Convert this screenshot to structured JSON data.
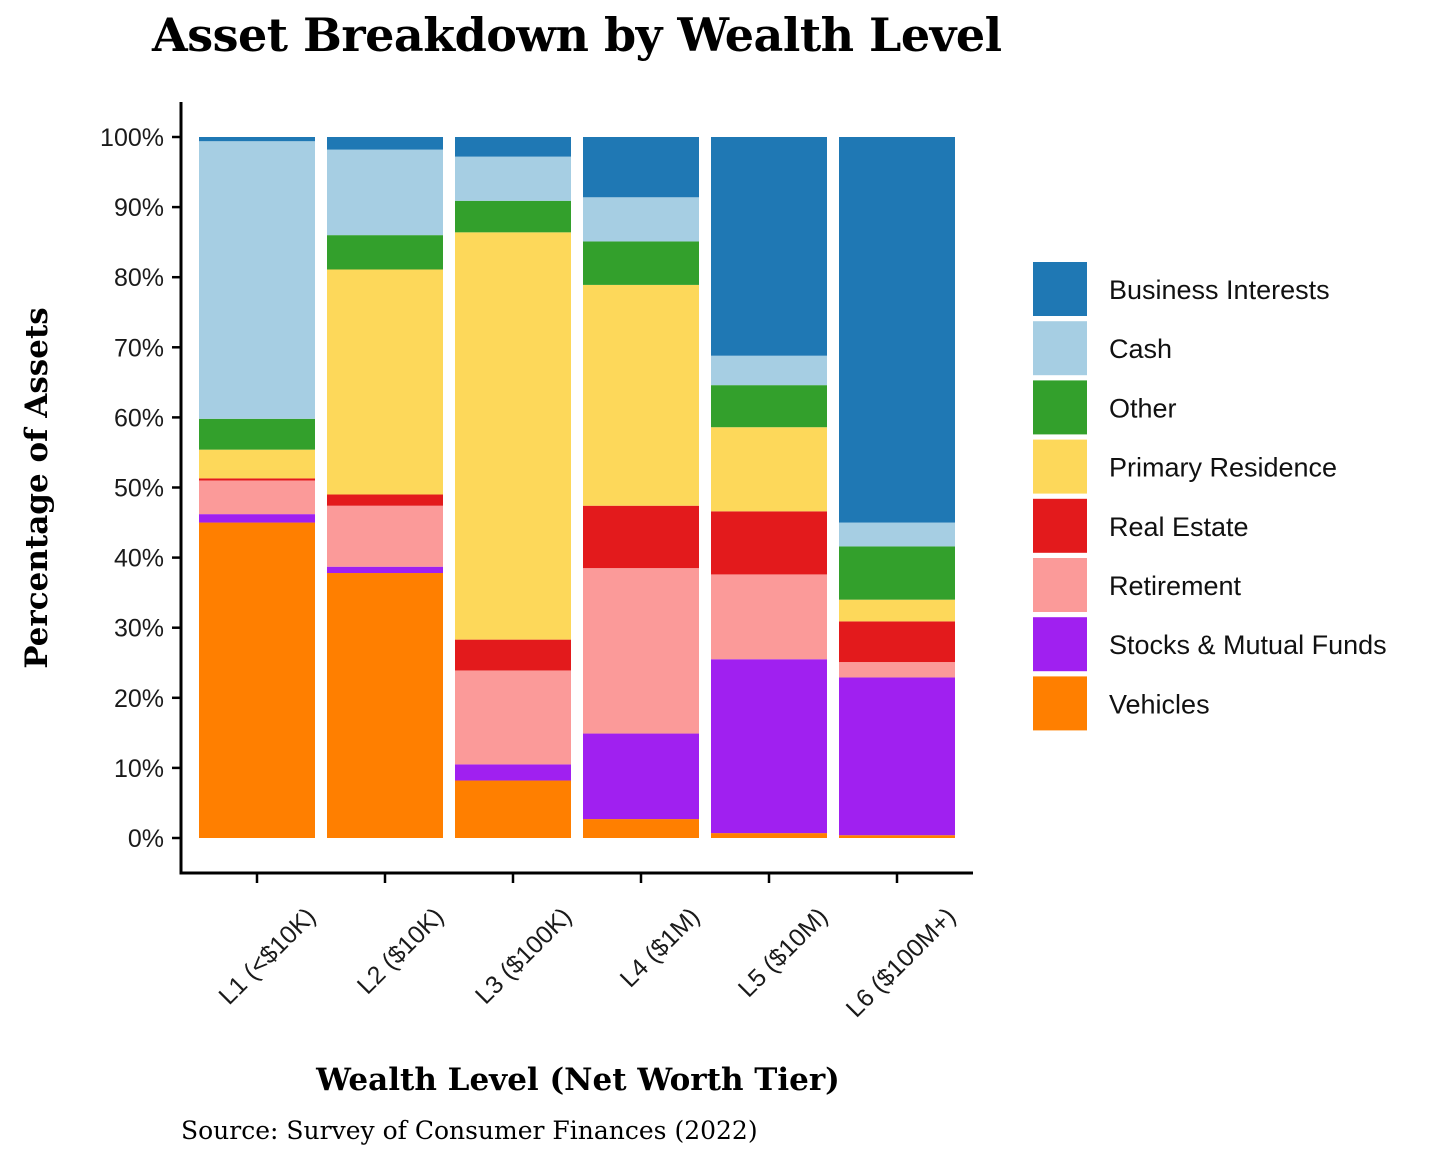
{
  "chart_data": {
    "type": "bar",
    "stacked": true,
    "title": "Asset Breakdown by Wealth Level",
    "xlabel": "Wealth Level (Net Worth Tier)",
    "ylabel": "Percentage of Assets",
    "source": "Source: Survey of Consumer Finances (2022)",
    "ylim": [
      0,
      100
    ],
    "yticks": [
      "0%",
      "10%",
      "20%",
      "30%",
      "40%",
      "50%",
      "60%",
      "70%",
      "80%",
      "90%",
      "100%"
    ],
    "ytick_values": [
      0,
      10,
      20,
      30,
      40,
      50,
      60,
      70,
      80,
      90,
      100
    ],
    "grid": false,
    "legend_position": "right",
    "categories": [
      "L1 (<$10K)",
      "L2 ($10K)",
      "L3 ($100K)",
      "L4 ($1M)",
      "L5 ($10M)",
      "L6 ($100M+)"
    ],
    "series": [
      {
        "name": "Vehicles",
        "color": "#FF7F00",
        "values": [
          45.0,
          37.8,
          8.2,
          2.7,
          0.7,
          0.4
        ]
      },
      {
        "name": "Stocks & Mutual Funds",
        "color": "#A020F0",
        "values": [
          1.2,
          0.9,
          2.3,
          12.2,
          24.8,
          22.5
        ]
      },
      {
        "name": "Retirement",
        "color": "#FB9A99",
        "values": [
          4.8,
          8.7,
          13.4,
          23.6,
          12.1,
          2.2
        ]
      },
      {
        "name": "Real Estate",
        "color": "#E31A1C",
        "values": [
          0.3,
          1.6,
          4.4,
          8.9,
          9.0,
          5.8
        ]
      },
      {
        "name": "Primary Residence",
        "color": "#FDD85A",
        "values": [
          4.1,
          32.1,
          58.1,
          31.5,
          12.0,
          3.1
        ]
      },
      {
        "name": "Other",
        "color": "#33A02C",
        "values": [
          4.4,
          4.9,
          4.5,
          6.2,
          6.0,
          7.6
        ]
      },
      {
        "name": "Cash",
        "color": "#A6CEE3",
        "values": [
          39.6,
          12.2,
          6.3,
          6.3,
          4.2,
          3.4
        ]
      },
      {
        "name": "Business Interests",
        "color": "#1F78B4",
        "values": [
          0.6,
          1.8,
          2.8,
          8.6,
          31.2,
          55.0
        ]
      }
    ]
  }
}
